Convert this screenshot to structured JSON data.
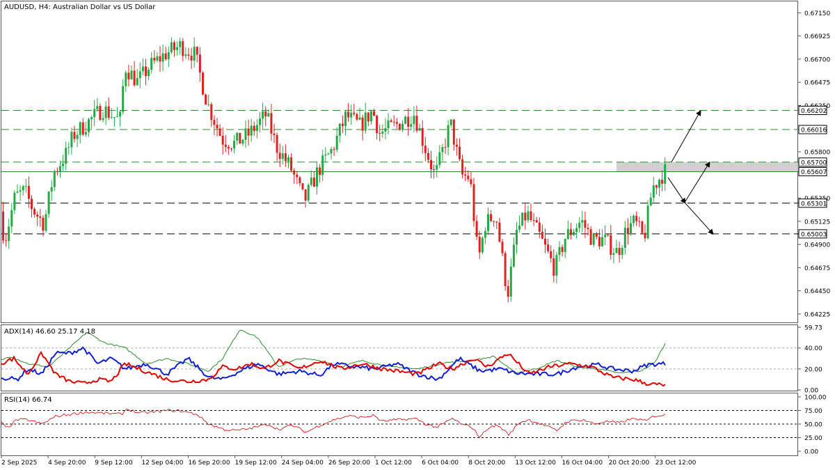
{
  "chart_header": "AUDUSD, H4:  Australian Dollar vs US Dollar",
  "price_axis": {
    "labels": [
      "0.67150",
      "0.66925",
      "0.66700",
      "0.66475",
      "0.66250",
      "0.65800",
      "0.65350",
      "0.65125",
      "0.64900",
      "0.64675",
      "0.64450",
      "0.64225"
    ]
  },
  "levels": [
    {
      "label": "0.66202",
      "value": 0.66202,
      "style": "dashed",
      "color": "#2e8b2e"
    },
    {
      "label": "0.66016",
      "value": 0.66016,
      "style": "dashed",
      "color": "#2e8b2e"
    },
    {
      "label": "0.65700",
      "value": 0.657,
      "style": "dashed",
      "color": "#2e8b2e"
    },
    {
      "label": "0.65607",
      "value": 0.65607,
      "style": "solid",
      "color": "#2e8b2e"
    },
    {
      "label": "0.65301",
      "value": 0.65301,
      "style": "dashed",
      "color": "#000000"
    },
    {
      "label": "0.65003",
      "value": 0.65003,
      "style": "dashed",
      "color": "#000000"
    }
  ],
  "adx_panel": {
    "title": "ADX(14) 46.60 25.17 4.18",
    "axis_labels": [
      "59.73",
      "40.00",
      "20.00",
      "0.00"
    ],
    "colors": {
      "adx": "#2e8b2e",
      "plus_di": "#1020d0",
      "minus_di": "#e00000"
    }
  },
  "rsi_panel": {
    "title": "RSI(14) 66.74",
    "axis_labels": [
      "100.00",
      "75.00",
      "50.00",
      "25.00",
      "0.00"
    ],
    "color": "#d00000"
  },
  "time_axis": {
    "labels": [
      "2 Sep 2025",
      "4 Sep 20:00",
      "9 Sep 12:00",
      "12 Sep 04:00",
      "16 Sep 20:00",
      "19 Sep 12:00",
      "24 Sep 04:00",
      "26 Sep 20:00",
      "1 Oct 12:00",
      "6 Oct 04:00",
      "8 Oct 20:00",
      "13 Oct 12:00",
      "16 Oct 04:00",
      "20 Oct 20:00",
      "23 Oct 12:00"
    ]
  },
  "chart_data": {
    "type": "candlestick",
    "symbol": "AUDUSD",
    "timeframe": "H4",
    "ylim": [
      0.6415,
      0.6722
    ],
    "bull_color": "#22aa44",
    "bear_color": "#dd2222",
    "anchors": [
      [
        0,
        0.6522
      ],
      [
        10,
        0.6495
      ],
      [
        24,
        0.6536
      ],
      [
        38,
        0.6542
      ],
      [
        50,
        0.6524
      ],
      [
        66,
        0.651
      ],
      [
        80,
        0.656
      ],
      [
        98,
        0.6578
      ],
      [
        108,
        0.6596
      ],
      [
        128,
        0.6608
      ],
      [
        150,
        0.6622
      ],
      [
        175,
        0.661
      ],
      [
        182,
        0.6663
      ],
      [
        200,
        0.6648
      ],
      [
        218,
        0.6663
      ],
      [
        240,
        0.6675
      ],
      [
        262,
        0.6683
      ],
      [
        283,
        0.6674
      ],
      [
        300,
        0.6628
      ],
      [
        322,
        0.6592
      ],
      [
        340,
        0.6588
      ],
      [
        360,
        0.6597
      ],
      [
        385,
        0.6616
      ],
      [
        400,
        0.6585
      ],
      [
        420,
        0.6565
      ],
      [
        440,
        0.6532
      ],
      [
        460,
        0.6562
      ],
      [
        480,
        0.6582
      ],
      [
        500,
        0.6615
      ],
      [
        520,
        0.6605
      ],
      [
        538,
        0.662
      ],
      [
        548,
        0.6598
      ],
      [
        572,
        0.6606
      ],
      [
        598,
        0.6617
      ],
      [
        612,
        0.6587
      ],
      [
        628,
        0.6556
      ],
      [
        650,
        0.6608
      ],
      [
        666,
        0.6557
      ],
      [
        678,
        0.6555
      ],
      [
        690,
        0.6474
      ],
      [
        700,
        0.651
      ],
      [
        715,
        0.652
      ],
      [
        732,
        0.6441
      ],
      [
        745,
        0.6502
      ],
      [
        760,
        0.652
      ],
      [
        778,
        0.6498
      ],
      [
        800,
        0.6466
      ],
      [
        815,
        0.6497
      ],
      [
        838,
        0.6513
      ],
      [
        855,
        0.6494
      ],
      [
        870,
        0.6495
      ],
      [
        890,
        0.6482
      ],
      [
        903,
        0.6505
      ],
      [
        915,
        0.6512
      ],
      [
        928,
        0.6495
      ],
      [
        940,
        0.6545
      ],
      [
        958,
        0.6561
      ]
    ],
    "levels": [
      0.66202,
      0.66016,
      0.657,
      0.65607,
      0.65301,
      0.65003
    ],
    "zone": {
      "from": 0.65607,
      "to": 0.657
    },
    "projection_arrows": [
      {
        "from": [
          965,
          0.657
        ],
        "to": [
          1007,
          0.662
        ]
      },
      {
        "from": [
          985,
          0.6532
        ],
        "to": [
          1020,
          0.657
        ]
      },
      {
        "from": [
          960,
          0.6555
        ],
        "to": [
          985,
          0.653
        ]
      },
      {
        "from": [
          985,
          0.653
        ],
        "to": [
          1025,
          0.65
        ]
      }
    ],
    "adx": {
      "latest": {
        "adx": 46.6,
        "plus_di": 25.17,
        "minus_di": 4.18
      },
      "ylim": [
        0,
        59.73
      ],
      "adx_anchors": [
        [
          0,
          28
        ],
        [
          15,
          32
        ],
        [
          40,
          25
        ],
        [
          70,
          22
        ],
        [
          100,
          40
        ],
        [
          125,
          55
        ],
        [
          150,
          45
        ],
        [
          180,
          40
        ],
        [
          210,
          25
        ],
        [
          240,
          30
        ],
        [
          270,
          25
        ],
        [
          300,
          18
        ],
        [
          320,
          30
        ],
        [
          345,
          58
        ],
        [
          370,
          50
        ],
        [
          400,
          22
        ],
        [
          430,
          30
        ],
        [
          460,
          28
        ],
        [
          490,
          22
        ],
        [
          520,
          28
        ],
        [
          560,
          22
        ],
        [
          600,
          20
        ],
        [
          640,
          26
        ],
        [
          680,
          28
        ],
        [
          710,
          32
        ],
        [
          740,
          16
        ],
        [
          770,
          20
        ],
        [
          800,
          28
        ],
        [
          830,
          22
        ],
        [
          860,
          20
        ],
        [
          890,
          16
        ],
        [
          920,
          18
        ],
        [
          940,
          25
        ],
        [
          958,
          46.6
        ]
      ],
      "plus_anchors": [
        [
          0,
          12
        ],
        [
          25,
          10
        ],
        [
          40,
          20
        ],
        [
          60,
          15
        ],
        [
          80,
          35
        ],
        [
          100,
          35
        ],
        [
          120,
          40
        ],
        [
          140,
          25
        ],
        [
          160,
          30
        ],
        [
          180,
          20
        ],
        [
          210,
          25
        ],
        [
          240,
          15
        ],
        [
          270,
          30
        ],
        [
          300,
          12
        ],
        [
          320,
          10
        ],
        [
          345,
          18
        ],
        [
          370,
          25
        ],
        [
          400,
          15
        ],
        [
          430,
          18
        ],
        [
          460,
          14
        ],
        [
          480,
          25
        ],
        [
          510,
          22
        ],
        [
          540,
          20
        ],
        [
          570,
          25
        ],
        [
          600,
          15
        ],
        [
          630,
          10
        ],
        [
          660,
          30
        ],
        [
          690,
          18
        ],
        [
          720,
          20
        ],
        [
          740,
          16
        ],
        [
          770,
          15
        ],
        [
          800,
          15
        ],
        [
          830,
          22
        ],
        [
          860,
          24
        ],
        [
          880,
          20
        ],
        [
          910,
          18
        ],
        [
          930,
          24
        ],
        [
          958,
          25.17
        ]
      ],
      "minus_anchors": [
        [
          0,
          25
        ],
        [
          20,
          30
        ],
        [
          40,
          15
        ],
        [
          60,
          35
        ],
        [
          80,
          15
        ],
        [
          100,
          8
        ],
        [
          120,
          6
        ],
        [
          140,
          10
        ],
        [
          160,
          8
        ],
        [
          180,
          25
        ],
        [
          200,
          20
        ],
        [
          220,
          15
        ],
        [
          240,
          10
        ],
        [
          270,
          8
        ],
        [
          300,
          10
        ],
        [
          320,
          22
        ],
        [
          340,
          20
        ],
        [
          360,
          25
        ],
        [
          380,
          20
        ],
        [
          400,
          28
        ],
        [
          430,
          20
        ],
        [
          460,
          28
        ],
        [
          490,
          20
        ],
        [
          520,
          25
        ],
        [
          550,
          20
        ],
        [
          570,
          18
        ],
        [
          600,
          15
        ],
        [
          630,
          25
        ],
        [
          650,
          20
        ],
        [
          680,
          30
        ],
        [
          700,
          22
        ],
        [
          730,
          35
        ],
        [
          760,
          15
        ],
        [
          790,
          22
        ],
        [
          820,
          25
        ],
        [
          850,
          22
        ],
        [
          880,
          12
        ],
        [
          910,
          10
        ],
        [
          930,
          6
        ],
        [
          958,
          4.18
        ]
      ]
    },
    "rsi": {
      "latest": 66.74,
      "ylim": [
        0,
        100
      ],
      "guides": [
        75,
        50,
        25
      ],
      "anchors": [
        [
          0,
          55
        ],
        [
          10,
          42
        ],
        [
          24,
          58
        ],
        [
          40,
          58
        ],
        [
          60,
          50
        ],
        [
          80,
          64
        ],
        [
          100,
          68
        ],
        [
          125,
          72
        ],
        [
          150,
          70
        ],
        [
          175,
          68
        ],
        [
          182,
          78
        ],
        [
          200,
          70
        ],
        [
          220,
          72
        ],
        [
          240,
          75
        ],
        [
          260,
          74
        ],
        [
          283,
          68
        ],
        [
          300,
          50
        ],
        [
          322,
          40
        ],
        [
          340,
          38
        ],
        [
          360,
          42
        ],
        [
          385,
          50
        ],
        [
          400,
          40
        ],
        [
          420,
          48
        ],
        [
          440,
          35
        ],
        [
          460,
          48
        ],
        [
          480,
          58
        ],
        [
          500,
          65
        ],
        [
          520,
          62
        ],
        [
          538,
          66
        ],
        [
          548,
          55
        ],
        [
          572,
          58
        ],
        [
          598,
          60
        ],
        [
          612,
          50
        ],
        [
          628,
          44
        ],
        [
          650,
          60
        ],
        [
          666,
          48
        ],
        [
          678,
          45
        ],
        [
          690,
          25
        ],
        [
          700,
          42
        ],
        [
          715,
          48
        ],
        [
          732,
          30
        ],
        [
          745,
          52
        ],
        [
          760,
          58
        ],
        [
          778,
          50
        ],
        [
          800,
          38
        ],
        [
          815,
          55
        ],
        [
          838,
          58
        ],
        [
          855,
          50
        ],
        [
          870,
          55
        ],
        [
          890,
          52
        ],
        [
          903,
          58
        ],
        [
          915,
          60
        ],
        [
          928,
          55
        ],
        [
          940,
          65
        ],
        [
          958,
          66.74
        ]
      ]
    }
  }
}
